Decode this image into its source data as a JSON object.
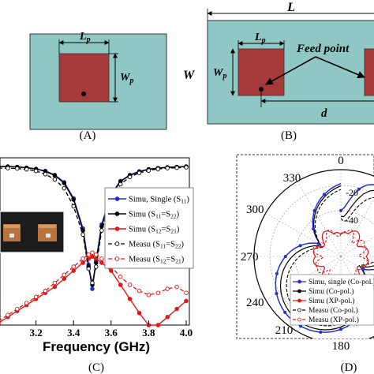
{
  "panel_a": {
    "caption": "(A)",
    "lp_label": "L",
    "lp_sub": "p",
    "wp_label": "W",
    "wp_sub": "p"
  },
  "panel_b": {
    "caption": "(B)",
    "L_label": "L",
    "W_label": "W",
    "lp_label": "L",
    "lp_sub": "p",
    "wp_label": "W",
    "wp_sub": "p",
    "feed_label": "Feed point",
    "d_label": "d"
  },
  "panel_c": {
    "caption": "(C)",
    "xlabel": "Frequency (GHz)",
    "xticks": [
      "3.2",
      "3.4",
      "3.6",
      "3.8",
      "4.0"
    ]
  },
  "panel_d": {
    "caption": "(D)",
    "angle_labels": [
      "0",
      "330",
      "300",
      "270",
      "240",
      "210",
      "180"
    ],
    "radial_labels": [
      "-20",
      "-40"
    ]
  },
  "colors": {
    "substrate": "#8fc7c5",
    "patch": "#a63a3a",
    "blue": "#1f2fd6",
    "black": "#000000",
    "red": "#e01818"
  },
  "chart_data": [
    {
      "type": "line",
      "xlabel": "Frequency (GHz)",
      "ylabel": "",
      "xlim": [
        3.0,
        4.0
      ],
      "ylim": [
        -40,
        0
      ],
      "x": [
        3.0,
        3.05,
        3.1,
        3.15,
        3.2,
        3.25,
        3.3,
        3.35,
        3.4,
        3.45,
        3.48,
        3.5,
        3.52,
        3.55,
        3.6,
        3.65,
        3.7,
        3.75,
        3.8,
        3.85,
        3.9,
        3.95,
        4.0
      ],
      "series": [
        {
          "name": "Simu, Single (S11)",
          "values": [
            -0.6,
            -0.6,
            -0.7,
            -0.9,
            -1.2,
            -1.7,
            -2.7,
            -4.5,
            -8.5,
            -16,
            -25,
            -31,
            -24,
            -15,
            -7.5,
            -4.2,
            -2.7,
            -1.8,
            -1.3,
            -1.0,
            -0.8,
            -0.7,
            -0.6
          ]
        },
        {
          "name": "Simu (S11=S22)",
          "values": [
            -0.6,
            -0.6,
            -0.7,
            -0.9,
            -1.2,
            -1.8,
            -2.8,
            -4.7,
            -8.8,
            -16.5,
            -25.5,
            -30,
            -24.5,
            -15.5,
            -7.8,
            -4.3,
            -2.8,
            -1.9,
            -1.3,
            -1.0,
            -0.8,
            -0.7,
            -0.6
          ]
        },
        {
          "name": "Simu (S12=S21)",
          "values": [
            -39.5,
            -38,
            -36.5,
            -35,
            -33.5,
            -32,
            -30.5,
            -28.5,
            -26.5,
            -24.5,
            -23.5,
            -23,
            -23.5,
            -24.5,
            -26.5,
            -30,
            -33.5,
            -37,
            -40,
            -40,
            -38,
            -36,
            -34
          ]
        },
        {
          "name": "Measu (S11=S22)",
          "values": [
            -1.0,
            -1.0,
            -1.1,
            -1.3,
            -1.7,
            -2.5,
            -3.8,
            -6.0,
            -10.5,
            -17.5,
            -26,
            -29.5,
            -25.5,
            -16.5,
            -9,
            -5,
            -3.2,
            -2.2,
            -1.6,
            -1.2,
            -1.0,
            -0.9,
            -0.8
          ]
        },
        {
          "name": "Measu (S12=S21)",
          "values": [
            -39,
            -37.5,
            -36,
            -34.5,
            -33,
            -31.5,
            -29.5,
            -27.5,
            -25.5,
            -23.5,
            -22.5,
            -22,
            -22.5,
            -23.5,
            -25.5,
            -28,
            -30,
            -31.5,
            -32.5,
            -32,
            -31,
            -30.5,
            -32
          ]
        }
      ]
    },
    {
      "type": "polar",
      "angle_labels": [
        "0",
        "330",
        "300",
        "270",
        "240",
        "210",
        "180"
      ],
      "radial_labels": [
        "-20",
        "-40"
      ],
      "series": [
        {
          "name": "Simu, single (Co-pol.)"
        },
        {
          "name": "Simu (Co-pol.)"
        },
        {
          "name": "Simu (XP-pol.)"
        },
        {
          "name": "Measu (Co-pol.)"
        },
        {
          "name": "Measu (XP-pol.)"
        }
      ]
    }
  ]
}
